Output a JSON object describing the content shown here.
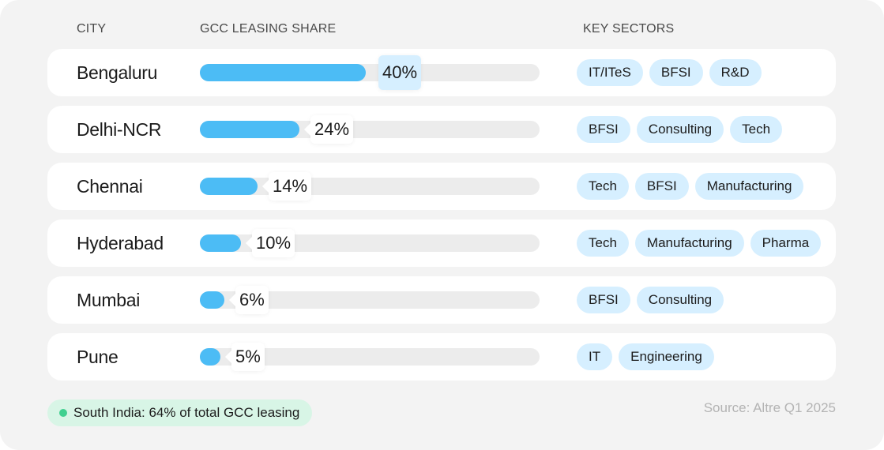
{
  "headers": {
    "city": "CITY",
    "share": "GCC LEASING SHARE",
    "sectors": "KEY SECTORS"
  },
  "chart_data": {
    "type": "bar",
    "orientation": "horizontal",
    "categories": [
      "Bengaluru",
      "Delhi-NCR",
      "Chennai",
      "Hyderabad",
      "Mumbai",
      "Pune"
    ],
    "values": [
      40,
      24,
      14,
      10,
      6,
      5
    ],
    "value_labels": [
      "40%",
      "24%",
      "14%",
      "10%",
      "6%",
      "5%"
    ],
    "xlim": [
      0,
      82
    ],
    "unit": "%",
    "highlight_index": 0
  },
  "rows": [
    {
      "city": "Bengaluru",
      "label": "40%",
      "sectors": [
        "IT/ITeS",
        "BFSI",
        "R&D"
      ]
    },
    {
      "city": "Delhi-NCR",
      "label": "24%",
      "sectors": [
        "BFSI",
        "Consulting",
        "Tech"
      ]
    },
    {
      "city": "Chennai",
      "label": "14%",
      "sectors": [
        "Tech",
        "BFSI",
        "Manufacturing"
      ]
    },
    {
      "city": "Hyderabad",
      "label": "10%",
      "sectors": [
        "Tech",
        "Manufacturing",
        "Pharma"
      ]
    },
    {
      "city": "Mumbai",
      "label": "6%",
      "sectors": [
        "BFSI",
        "Consulting"
      ]
    },
    {
      "city": "Pune",
      "label": "5%",
      "sectors": [
        "IT",
        "Engineering"
      ]
    }
  ],
  "footer": {
    "note": "South India: 64% of total GCC leasing",
    "source": "Source: Altre Q1 2025"
  },
  "colors": {
    "bar": "#4cbcf5",
    "track": "#ececec",
    "tag": "#d6efff",
    "note_bg": "#d8f5e6",
    "note_dot": "#3fd08f"
  }
}
